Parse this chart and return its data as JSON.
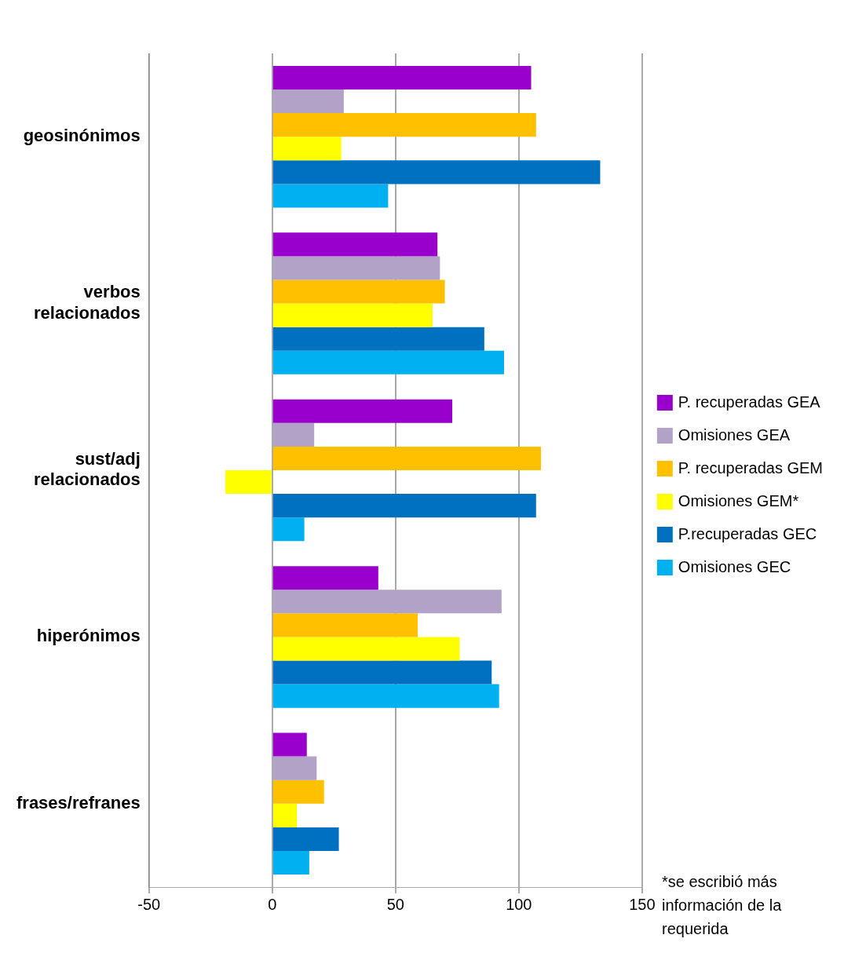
{
  "chart_data": {
    "type": "bar",
    "orientation": "horizontal",
    "categories": [
      "geosinónimos",
      "verbos relacionados",
      "sust/adj relacionados",
      "hiperónimos",
      "frases/refranes"
    ],
    "series": [
      {
        "name": "P. recuperadas GEA",
        "color": "#9900cc",
        "values": [
          105,
          67,
          73,
          43,
          14
        ]
      },
      {
        "name": "Omisiones GEA",
        "color": "#b3a2c7",
        "values": [
          29,
          68,
          17,
          93,
          18
        ]
      },
      {
        "name": "P. recuperadas GEM",
        "color": "#ffc000",
        "values": [
          107,
          70,
          109,
          59,
          21
        ]
      },
      {
        "name": "Omisiones GEM*",
        "color": "#ffff00",
        "values": [
          28,
          65,
          -19,
          76,
          10
        ]
      },
      {
        "name": "P.recuperadas GEC",
        "color": "#0070c0",
        "values": [
          133,
          86,
          107,
          89,
          27
        ]
      },
      {
        "name": "Omisiones GEC",
        "color": "#00b0f0",
        "values": [
          47,
          94,
          13,
          92,
          15
        ]
      }
    ],
    "xlim": [
      -50,
      150
    ],
    "xticks": [
      -50,
      0,
      50,
      100,
      150
    ],
    "grid": "x",
    "legend": "right",
    "annotations": [
      "*se escribió más información de la requerida"
    ]
  }
}
